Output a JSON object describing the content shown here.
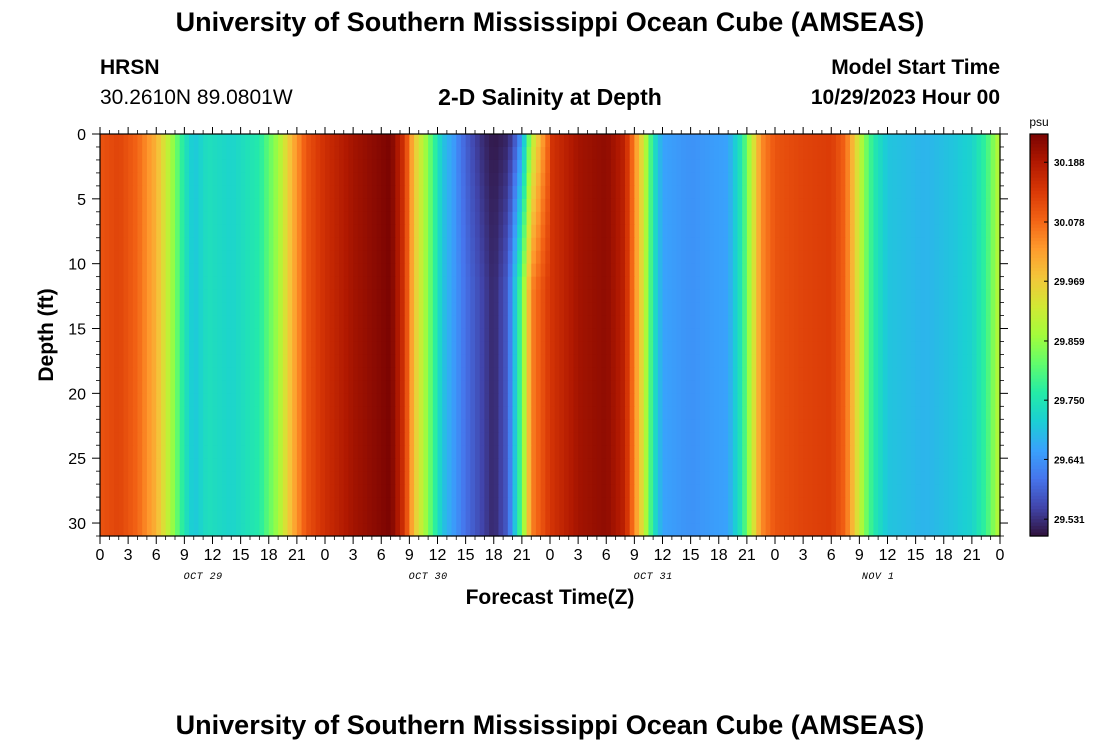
{
  "header": {
    "title": "University of Southern Mississippi Ocean Cube (AMSEAS)",
    "station": "HRSN",
    "coords": "30.2610N  89.0801W",
    "subtitle": "2-D Salinity at Depth",
    "model_start_label": "Model Start Time",
    "model_start_value": "10/29/2023 Hour 00"
  },
  "footer": {
    "title": "University of Southern Mississippi Ocean Cube (AMSEAS)"
  },
  "chart_data": {
    "type": "heatmap",
    "title": "2-D Salinity at Depth",
    "xlabel": "Forecast Time(Z)",
    "ylabel": "Depth (ft)",
    "units": "psu",
    "x_hours": [
      0,
      96
    ],
    "x_tick_labels": [
      "0",
      "3",
      "6",
      "9",
      "12",
      "15",
      "18",
      "21",
      "0",
      "3",
      "6",
      "9",
      "12",
      "15",
      "18",
      "21",
      "0",
      "3",
      "6",
      "9",
      "12",
      "15",
      "18",
      "21",
      "0",
      "3",
      "6",
      "9",
      "12",
      "15",
      "18",
      "21",
      "0"
    ],
    "day_labels": [
      "OCT 29",
      "OCT 30",
      "OCT 31",
      "NOV 1"
    ],
    "ylim": [
      0,
      31
    ],
    "y_ticks": [
      0,
      5,
      10,
      15,
      20,
      25,
      30
    ],
    "colorbar_ticks": [
      30.188,
      30.078,
      29.969,
      29.859,
      29.75,
      29.641,
      29.531
    ],
    "color_range": [
      29.5,
      30.24
    ],
    "colormap": [
      "#30123b",
      "#4145ab",
      "#4675ed",
      "#39a2fc",
      "#1bcfd4",
      "#24eca6",
      "#61fc6c",
      "#a4fc3b",
      "#d1e834",
      "#f3c63a",
      "#fe9b2d",
      "#f36315",
      "#d93806",
      "#b11901",
      "#7a0402"
    ],
    "surface_salinity_by_hour": [
      [
        0,
        30.1
      ],
      [
        2,
        30.12
      ],
      [
        4,
        30.08
      ],
      [
        6,
        30.0
      ],
      [
        7.5,
        29.88
      ],
      [
        9,
        29.75
      ],
      [
        10,
        29.7
      ],
      [
        11.5,
        29.74
      ],
      [
        14,
        29.72
      ],
      [
        17,
        29.76
      ],
      [
        19,
        29.87
      ],
      [
        20.5,
        30.0
      ],
      [
        22,
        30.1
      ],
      [
        24,
        30.15
      ],
      [
        27,
        30.2
      ],
      [
        31,
        30.24
      ],
      [
        32.5,
        30.14
      ],
      [
        33.5,
        29.98
      ],
      [
        35,
        29.84
      ],
      [
        36.5,
        29.7
      ],
      [
        39,
        29.6
      ],
      [
        42,
        29.52
      ],
      [
        43.5,
        29.58
      ],
      [
        45,
        29.82
      ],
      [
        46,
        30.05
      ],
      [
        48,
        30.14
      ],
      [
        51,
        30.2
      ],
      [
        54,
        30.22
      ],
      [
        56,
        30.17
      ],
      [
        57,
        30.05
      ],
      [
        58,
        29.92
      ],
      [
        59,
        29.75
      ],
      [
        60,
        29.66
      ],
      [
        63,
        29.64
      ],
      [
        67,
        29.66
      ],
      [
        68.5,
        29.76
      ],
      [
        69.5,
        29.9
      ],
      [
        70.5,
        30.04
      ],
      [
        72,
        30.1
      ],
      [
        75,
        30.12
      ],
      [
        78,
        30.13
      ],
      [
        79.5,
        30.08
      ],
      [
        80.5,
        29.97
      ],
      [
        81.5,
        29.85
      ],
      [
        82.5,
        29.76
      ],
      [
        84,
        29.7
      ],
      [
        88,
        29.68
      ],
      [
        91,
        29.7
      ],
      [
        93,
        29.72
      ],
      [
        94.5,
        29.78
      ],
      [
        95.5,
        29.86
      ],
      [
        96,
        29.9
      ]
    ]
  }
}
